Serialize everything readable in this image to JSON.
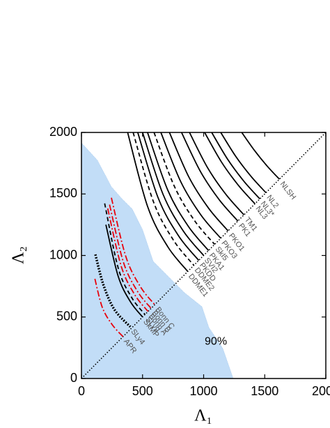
{
  "chart_data": {
    "type": "line",
    "xlabel": "Λ₁",
    "ylabel": "Λ₂",
    "xlim": [
      0,
      2000
    ],
    "ylim": [
      0,
      2000
    ],
    "xticks": [
      0,
      500,
      1000,
      1500,
      2000
    ],
    "yticks": [
      0,
      500,
      1000,
      1500,
      2000
    ],
    "diagonal": true,
    "region": {
      "label": "90%",
      "color": "#c2ddf7",
      "x": [
        0,
        131,
        245,
        330,
        416,
        501,
        587,
        729,
        843,
        986,
        1043,
        1157,
        1242
      ],
      "y": [
        1915,
        1773,
        1558,
        1462,
        1377,
        1207,
        952,
        810,
        697,
        584,
        414,
        244,
        0
      ]
    },
    "series": [
      {
        "name": "NLSH",
        "color": "#000000",
        "dash": "solid",
        "x": [
          1312,
          1415,
          1517,
          1620
        ],
        "values": [
          2000,
          1855,
          1730,
          1620
        ]
      },
      {
        "name": "NL2",
        "color": "#000000",
        "dash": "solid",
        "x": [
          1140,
          1263,
          1387,
          1510
        ],
        "values": [
          2000,
          1805,
          1644,
          1510
        ]
      },
      {
        "name": "NL3*",
        "color": "#000000",
        "dash": "solid",
        "x": [
          1066,
          1197,
          1329,
          1460
        ],
        "values": [
          2000,
          1781,
          1604,
          1460
        ]
      },
      {
        "name": "NL3",
        "color": "#000000",
        "dash": "solid",
        "x": [
          1008,
          1145,
          1283,
          1420
        ],
        "values": [
          2000,
          1761,
          1572,
          1420
        ]
      },
      {
        "name": "TM1",
        "color": "#000000",
        "dash": "solid",
        "x": [
          884,
          1033,
          1181,
          1330
        ],
        "values": [
          2000,
          1712,
          1498,
          1330
        ]
      },
      {
        "name": "PK1",
        "color": "#000000",
        "dash": "solid",
        "x": [
          819,
          973,
          1126,
          1280
        ],
        "values": [
          2000,
          1684,
          1455,
          1280
        ]
      },
      {
        "name": "PKO1",
        "color": "#000000",
        "dash": "solid",
        "x": [
          720,
          880,
          1040,
          1200
        ],
        "values": [
          2000,
          1636,
          1385,
          1200
        ]
      },
      {
        "name": "PKO3",
        "color": "#000000",
        "dash": "solid",
        "x": [
          650,
          813,
          977,
          1140
        ],
        "values": [
          2000,
          1599,
          1330,
          1140
        ]
      },
      {
        "name": "SkI5",
        "color": "#000000",
        "dash": "dashed",
        "x": [
          594,
          759,
          925,
          1090
        ],
        "values": [
          2000,
          1565,
          1284,
          1090
        ]
      },
      {
        "name": "PKA1",
        "color": "#000000",
        "dash": "solid",
        "x": [
          541,
          707,
          874,
          1040
        ],
        "values": [
          1999,
          1530,
          1238,
          1040
        ]
      },
      {
        "name": "SVI2",
        "color": "#000000",
        "dash": "solid",
        "x": [
          500,
          667,
          833,
          1000
        ],
        "values": [
          2000,
          1499,
          1200,
          1000
        ]
      },
      {
        "name": "PKDD",
        "color": "#000000",
        "dash": "solid",
        "x": [
          461,
          627,
          794,
          960
        ],
        "values": [
          1999,
          1470,
          1161,
          960
        ]
      },
      {
        "name": "DDME2",
        "color": "#000000",
        "dash": "dashed",
        "x": [
          423,
          589,
          754,
          920
        ],
        "values": [
          2000,
          1437,
          1123,
          920
        ]
      },
      {
        "name": "DDME1",
        "color": "#000000",
        "dash": "solid",
        "x": [
          378,
          542,
          706,
          870
        ],
        "values": [
          2000,
          1396,
          1072,
          870
        ]
      },
      {
        "name": "Bonn C",
        "color": "#e8000b",
        "dash": "dashdot",
        "x": [
          245,
          363,
          482,
          600
        ],
        "values": [
          1469,
          992,
          747,
          600
        ]
      },
      {
        "name": "Bonn B",
        "color": "#e8000b",
        "dash": "dashdot",
        "x": [
          230,
          343,
          457,
          570
        ],
        "values": [
          1413,
          947,
          711,
          570
        ]
      },
      {
        "name": "Bonn A",
        "color": "#e8000b",
        "dash": "dashdot",
        "x": [
          215,
          325,
          435,
          545
        ],
        "values": [
          1382,
          914,
          683,
          545
        ]
      },
      {
        "name": "SLy9",
        "color": "#000000",
        "dash": "dashed",
        "x": [
          190,
          300,
          410,
          520
        ],
        "values": [
          1423,
          901,
          660,
          520
        ]
      },
      {
        "name": "SkMP",
        "color": "#000000",
        "dash": "solid",
        "x": [
          200,
          300,
          400,
          500
        ],
        "values": [
          1250,
          833,
          625,
          500
        ]
      },
      {
        "name": "SLy4",
        "color": "#000000",
        "dash": "dotted",
        "x": [
          114,
          180,
          270,
          400
        ],
        "values": [
          1008,
          760,
          560,
          420
        ]
      },
      {
        "name": "APR",
        "color": "#e8000b",
        "dash": "dashdot",
        "x": [
          110,
          170,
          250,
          340
        ],
        "values": [
          810,
          580,
          440,
          340
        ]
      }
    ]
  }
}
